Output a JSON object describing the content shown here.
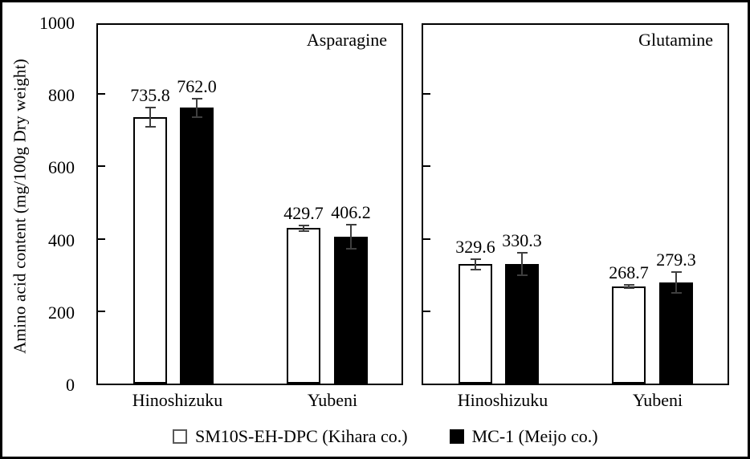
{
  "chart_data": {
    "type": "bar",
    "title": "",
    "ylabel": "Amino acid content (mg/100g Dry weight)",
    "xlabel": "",
    "ylim": [
      0,
      1000
    ],
    "yticks": [
      0,
      200,
      400,
      600,
      800,
      1000
    ],
    "grid": false,
    "legend_position": "bottom",
    "error_bar_color": "#3f3f3f",
    "categories": [
      "Hinoshizuku",
      "Yubeni"
    ],
    "legend": [
      {
        "label": "SM10S-EH-DPC (Kihara co.)",
        "fill": "#ffffff",
        "border": "#595959"
      },
      {
        "label": "MC-1 (Meijo co.)",
        "fill": "#000000",
        "border": "#000000"
      }
    ],
    "panels": [
      {
        "title": "Asparagine",
        "series": [
          {
            "name": "SM10S-EH-DPC (Kihara co.)",
            "fill": "#ffffff",
            "stroke": "#000000",
            "values": [
              735.8,
              429.7
            ],
            "errors": [
              26,
              8
            ]
          },
          {
            "name": "MC-1 (Meijo co.)",
            "fill": "#000000",
            "stroke": "#000000",
            "values": [
              762.0,
              406.2
            ],
            "errors": [
              26,
              33
            ]
          }
        ]
      },
      {
        "title": "Glutamine",
        "series": [
          {
            "name": "SM10S-EH-DPC (Kihara co.)",
            "fill": "#ffffff",
            "stroke": "#000000",
            "values": [
              329.6,
              268.7
            ],
            "errors": [
              14,
              4
            ]
          },
          {
            "name": "MC-1 (Meijo co.)",
            "fill": "#000000",
            "stroke": "#000000",
            "values": [
              330.3,
              279.3
            ],
            "errors": [
              31,
              29
            ]
          }
        ]
      }
    ]
  }
}
